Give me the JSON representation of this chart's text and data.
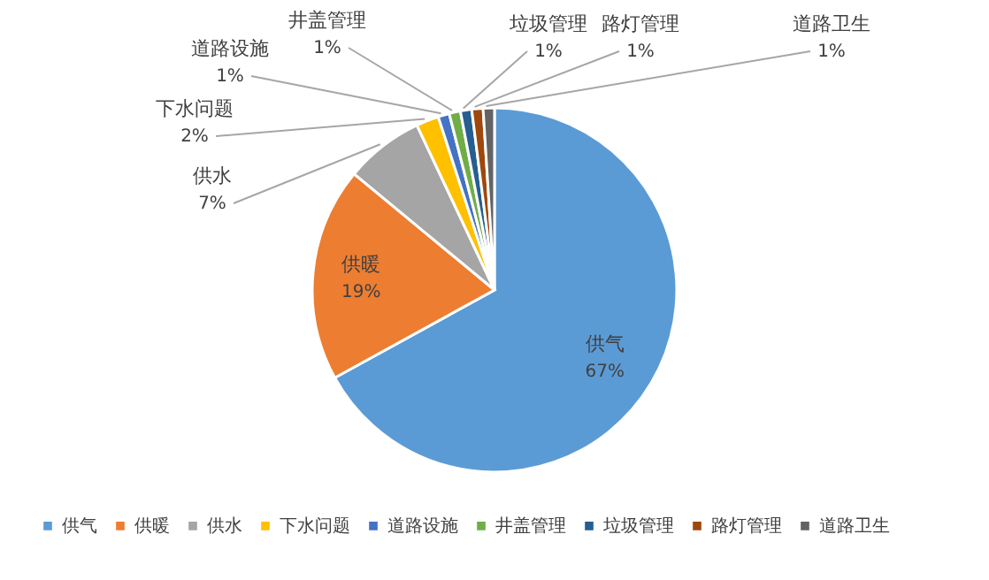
{
  "chart_data": {
    "type": "pie",
    "categories": [
      "供气",
      "供暖",
      "供水",
      "下水问题",
      "道路设施",
      "井盖管理",
      "垃圾管理",
      "路灯管理",
      "道路卫生"
    ],
    "values": [
      67,
      19,
      7,
      2,
      1,
      1,
      1,
      1,
      1
    ],
    "value_labels": [
      "67%",
      "19%",
      "7%",
      "2%",
      "1%",
      "1%",
      "1%",
      "1%",
      "1%"
    ],
    "colors": [
      "#5b9bd5",
      "#ed7d31",
      "#a5a5a5",
      "#ffc000",
      "#4472c4",
      "#70ad47",
      "#255e91",
      "#9e480e",
      "#636363"
    ],
    "legend": "bottom"
  }
}
